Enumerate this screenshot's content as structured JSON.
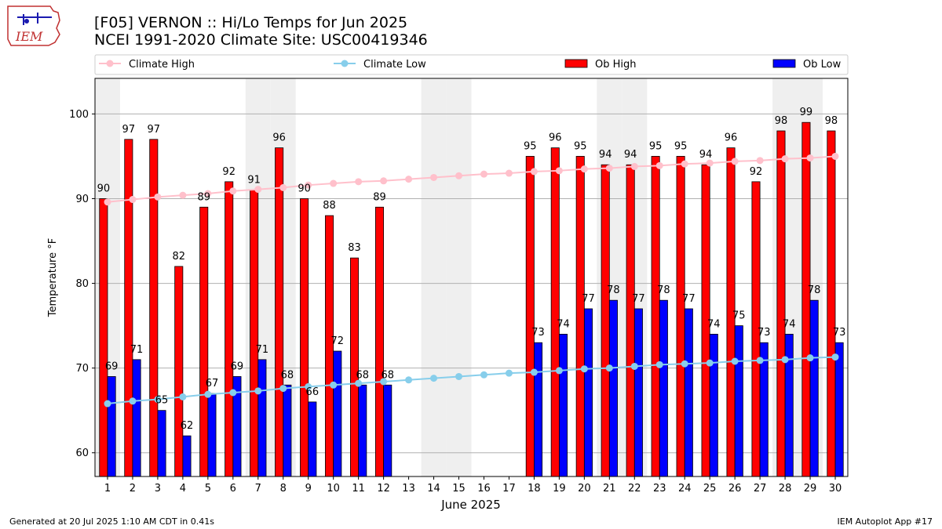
{
  "header": {
    "title": "[F05] VERNON :: Hi/Lo Temps for Jun 2025",
    "subtitle": "NCEI 1991-2020 Climate Site: USC00419346",
    "logo_text": "IEM"
  },
  "footer": {
    "left": "Generated at 20 Jul 2025 1:10 AM CDT in 0.41s",
    "right": "IEM Autoplot App #17"
  },
  "colors": {
    "ob_high": "#ff0000",
    "ob_low": "#0000ff",
    "climate_high": "#ffc0cb",
    "climate_low": "#87ceeb",
    "weekend_shade": "#efefef",
    "grid": "#b0b0b0"
  },
  "chart_data": {
    "type": "bar",
    "xlabel": "June 2025",
    "ylabel": "Temperature °F",
    "ylim": [
      57.2,
      104.2
    ],
    "yticks": [
      60,
      70,
      80,
      90,
      100
    ],
    "xlim": [
      0.5,
      30.5
    ],
    "grid": "horizontal",
    "legend_position": "top",
    "x": [
      1,
      2,
      3,
      4,
      5,
      6,
      7,
      8,
      9,
      10,
      11,
      12,
      13,
      14,
      15,
      16,
      17,
      18,
      19,
      20,
      21,
      22,
      23,
      24,
      25,
      26,
      27,
      28,
      29,
      30
    ],
    "shaded_days": [
      1,
      7,
      8,
      14,
      15,
      21,
      22,
      28,
      29
    ],
    "series": [
      {
        "name": "Climate High",
        "type": "line",
        "values": [
          89.6,
          89.9,
          90.2,
          90.4,
          90.6,
          90.9,
          91.1,
          91.3,
          91.6,
          91.8,
          92.0,
          92.1,
          92.3,
          92.5,
          92.7,
          92.9,
          93.0,
          93.2,
          93.3,
          93.5,
          93.6,
          93.8,
          93.9,
          94.1,
          94.2,
          94.4,
          94.5,
          94.7,
          94.8,
          95.0
        ]
      },
      {
        "name": "Climate Low",
        "type": "line",
        "values": [
          65.8,
          66.1,
          66.3,
          66.6,
          66.9,
          67.1,
          67.3,
          67.6,
          67.8,
          68.0,
          68.2,
          68.4,
          68.6,
          68.8,
          69.0,
          69.2,
          69.4,
          69.5,
          69.7,
          69.9,
          70.0,
          70.2,
          70.4,
          70.5,
          70.6,
          70.8,
          70.9,
          71.0,
          71.2,
          71.3
        ]
      },
      {
        "name": "Ob High",
        "type": "bar",
        "values": [
          90,
          97,
          97,
          82,
          89,
          92,
          91,
          96,
          90,
          88,
          83,
          89,
          null,
          null,
          null,
          null,
          null,
          95,
          96,
          95,
          94,
          94,
          95,
          95,
          94,
          96,
          92,
          98,
          99,
          98
        ]
      },
      {
        "name": "Ob Low",
        "type": "bar",
        "values": [
          69,
          71,
          65,
          62,
          67,
          69,
          71,
          68,
          66,
          72,
          68,
          68,
          null,
          null,
          null,
          null,
          null,
          73,
          74,
          77,
          78,
          77,
          78,
          77,
          74,
          75,
          73,
          74,
          78,
          73
        ]
      }
    ]
  }
}
